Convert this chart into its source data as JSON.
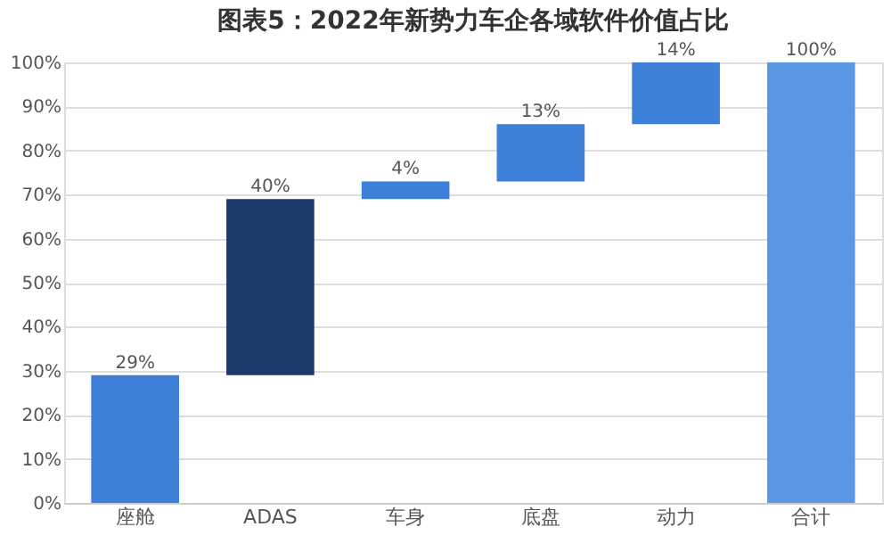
{
  "chart_data": {
    "type": "bar",
    "title": "图表5：2022年新势力车企各域软件价值占比",
    "categories": [
      "座舱",
      "ADAS",
      "车身",
      "底盘",
      "动力",
      "合计"
    ],
    "values": [
      29,
      40,
      4,
      13,
      14,
      100
    ],
    "base": [
      0,
      29,
      69,
      73,
      86,
      0
    ],
    "colors": [
      "#3d7fd9",
      "#1b3a6b",
      "#3d7fd9",
      "#3d7fd9",
      "#3d7fd9",
      "#5b98e3"
    ],
    "value_labels": [
      "29%",
      "40%",
      "4%",
      "13%",
      "14%",
      "100%"
    ],
    "ylim": [
      0,
      100
    ],
    "yticks": [
      {
        "value": 0,
        "label": "0%"
      },
      {
        "value": 10,
        "label": "10%"
      },
      {
        "value": 20,
        "label": "20%"
      },
      {
        "value": 30,
        "label": "30%"
      },
      {
        "value": 40,
        "label": "40%"
      },
      {
        "value": 50,
        "label": "50%"
      },
      {
        "value": 60,
        "label": "60%"
      },
      {
        "value": 70,
        "label": "70%"
      },
      {
        "value": 80,
        "label": "80%"
      },
      {
        "value": 90,
        "label": "90%"
      },
      {
        "value": 100,
        "label": "100%"
      }
    ],
    "grid": "y"
  }
}
